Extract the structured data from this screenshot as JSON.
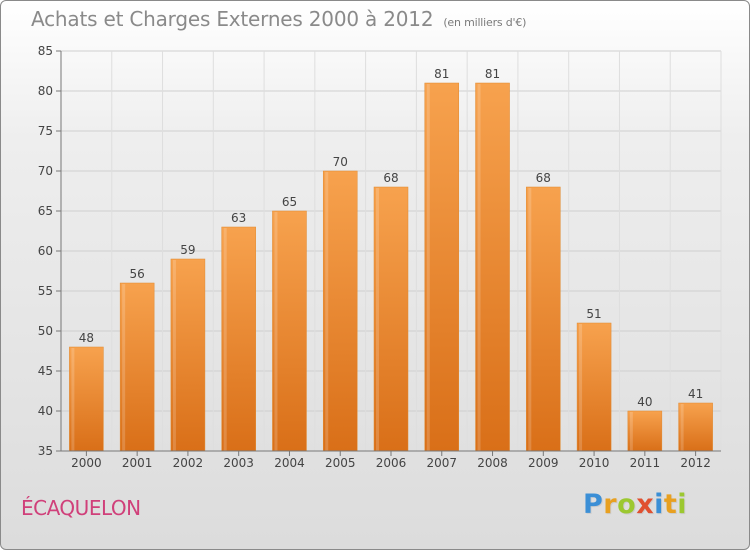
{
  "chart_data": {
    "type": "bar",
    "title": "Achats et Charges Externes 2000 à 2012",
    "unit_note": "(en milliers d'€)",
    "categories": [
      "2000",
      "2001",
      "2002",
      "2003",
      "2004",
      "2005",
      "2006",
      "2007",
      "2008",
      "2009",
      "2010",
      "2011",
      "2012"
    ],
    "values": [
      48,
      56,
      59,
      63,
      65,
      70,
      68,
      81,
      81,
      68,
      51,
      40,
      41
    ],
    "ylim": [
      35,
      85
    ],
    "yticks": [
      35,
      40,
      45,
      50,
      55,
      60,
      65,
      70,
      75,
      80,
      85
    ],
    "grid": true,
    "bar_color": "#f0953a"
  },
  "location": "ÉCAQUELON",
  "logo": {
    "letters": [
      "P",
      "r",
      "o",
      "x",
      "i",
      "t",
      "i"
    ],
    "colors": [
      "#3b8fd6",
      "#e8a020",
      "#9cc830",
      "#e05030",
      "#3b8fd6",
      "#e8a020",
      "#9cc830"
    ]
  }
}
